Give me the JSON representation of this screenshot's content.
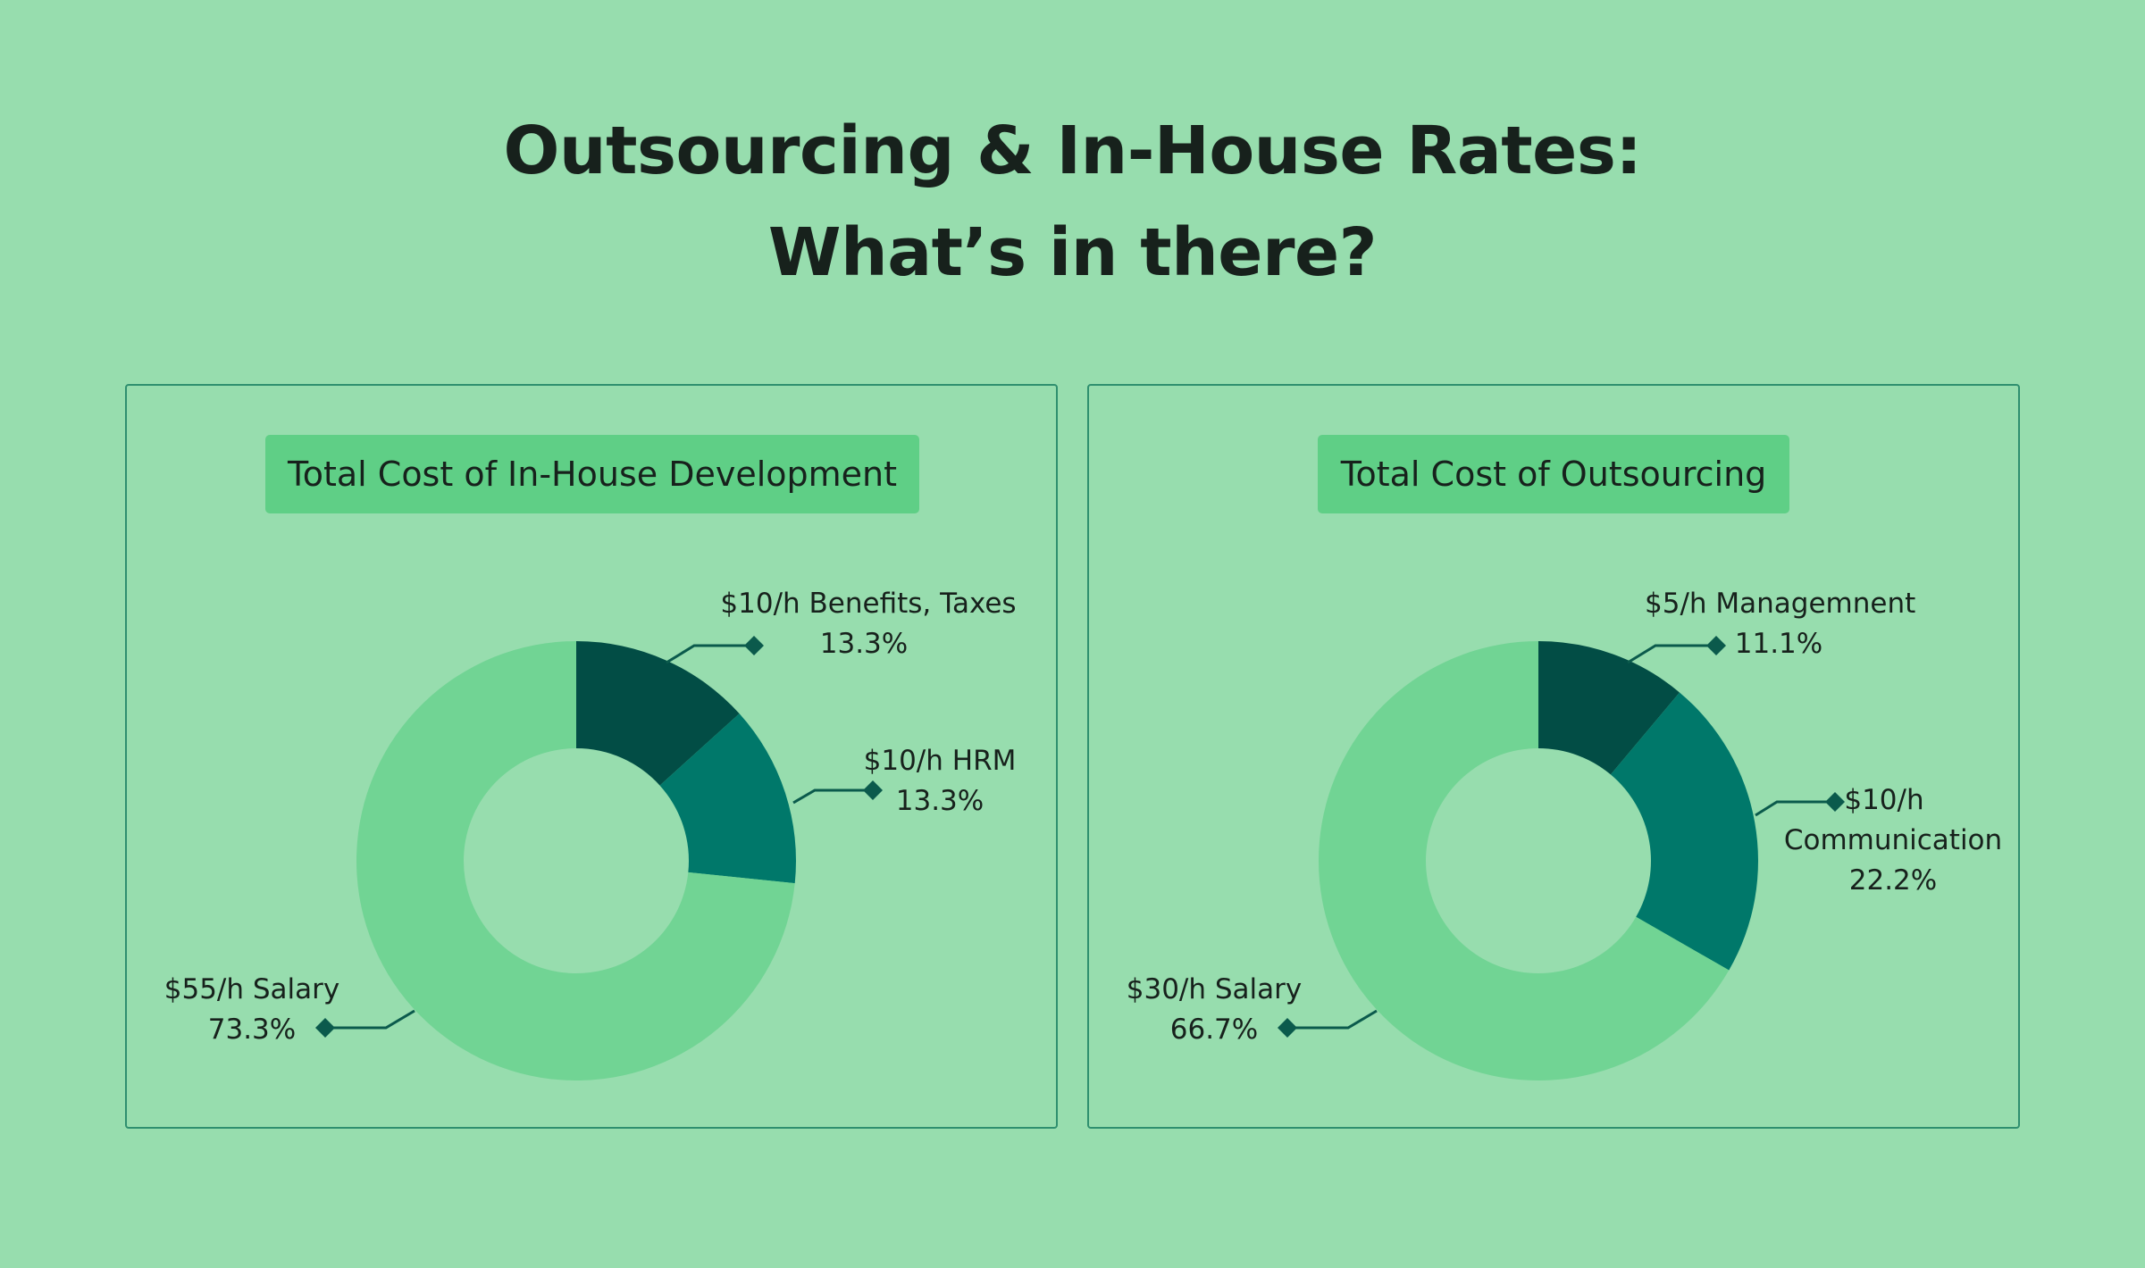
{
  "title_line1": "Outsourcing & In-House Rates:",
  "title_line2": "What’s in there?",
  "chart_data": [
    {
      "type": "pie",
      "title": "Total Cost of In-House Development",
      "slices": [
        {
          "label": "$10/h Benefits, Taxes",
          "percent_text": "13.3%",
          "value": 13.3,
          "color": "#024d45"
        },
        {
          "label": "$10/h HRM",
          "percent_text": "13.3%",
          "value": 13.3,
          "color": "#00786a"
        },
        {
          "label": "$55/h Salary",
          "percent_text": "73.3%",
          "value": 73.3,
          "color": "#71d494"
        }
      ]
    },
    {
      "type": "pie",
      "title": "Total Cost of Outsourcing",
      "slices": [
        {
          "label": "$5/h Managemnent",
          "percent_text": "11.1%",
          "value": 11.1,
          "color": "#024d45"
        },
        {
          "label": "$10/h Communication",
          "label_line1": "$10/h",
          "label_line2": "Communication",
          "percent_text": "22.2%",
          "value": 22.2,
          "color": "#00786a"
        },
        {
          "label": "$30/h Salary",
          "percent_text": "66.7%",
          "value": 66.7,
          "color": "#71d494"
        }
      ]
    }
  ]
}
